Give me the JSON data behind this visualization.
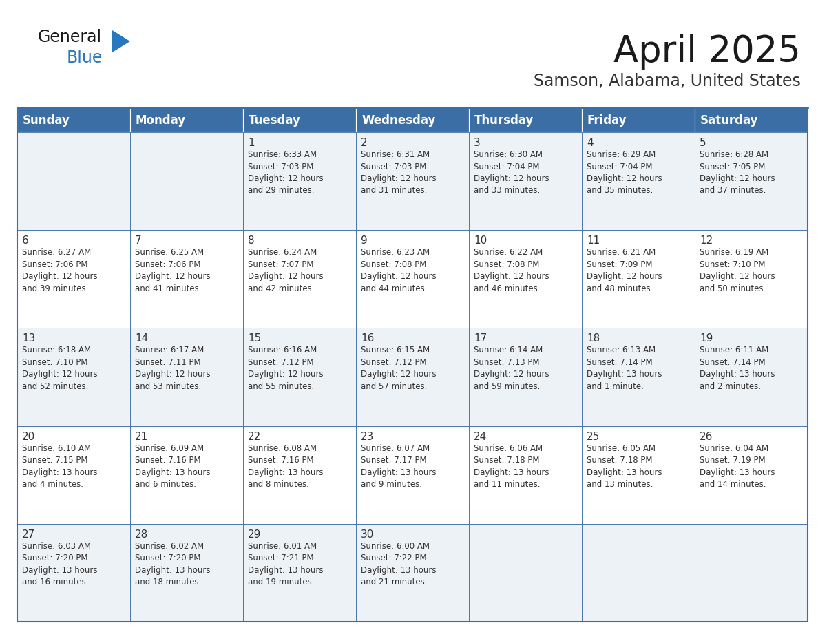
{
  "title": "April 2025",
  "subtitle": "Samson, Alabama, United States",
  "header_bg_color": "#3a6ea5",
  "header_text_color": "#ffffff",
  "cell_bg_row0": "#edf2f7",
  "cell_bg_row1": "#ffffff",
  "border_color": "#3a6ea5",
  "text_color": "#333333",
  "day_headers": [
    "Sunday",
    "Monday",
    "Tuesday",
    "Wednesday",
    "Thursday",
    "Friday",
    "Saturday"
  ],
  "weeks": [
    {
      "days": [
        {
          "date": "",
          "info": ""
        },
        {
          "date": "",
          "info": ""
        },
        {
          "date": "1",
          "info": "Sunrise: 6:33 AM\nSunset: 7:03 PM\nDaylight: 12 hours\nand 29 minutes."
        },
        {
          "date": "2",
          "info": "Sunrise: 6:31 AM\nSunset: 7:03 PM\nDaylight: 12 hours\nand 31 minutes."
        },
        {
          "date": "3",
          "info": "Sunrise: 6:30 AM\nSunset: 7:04 PM\nDaylight: 12 hours\nand 33 minutes."
        },
        {
          "date": "4",
          "info": "Sunrise: 6:29 AM\nSunset: 7:04 PM\nDaylight: 12 hours\nand 35 minutes."
        },
        {
          "date": "5",
          "info": "Sunrise: 6:28 AM\nSunset: 7:05 PM\nDaylight: 12 hours\nand 37 minutes."
        }
      ]
    },
    {
      "days": [
        {
          "date": "6",
          "info": "Sunrise: 6:27 AM\nSunset: 7:06 PM\nDaylight: 12 hours\nand 39 minutes."
        },
        {
          "date": "7",
          "info": "Sunrise: 6:25 AM\nSunset: 7:06 PM\nDaylight: 12 hours\nand 41 minutes."
        },
        {
          "date": "8",
          "info": "Sunrise: 6:24 AM\nSunset: 7:07 PM\nDaylight: 12 hours\nand 42 minutes."
        },
        {
          "date": "9",
          "info": "Sunrise: 6:23 AM\nSunset: 7:08 PM\nDaylight: 12 hours\nand 44 minutes."
        },
        {
          "date": "10",
          "info": "Sunrise: 6:22 AM\nSunset: 7:08 PM\nDaylight: 12 hours\nand 46 minutes."
        },
        {
          "date": "11",
          "info": "Sunrise: 6:21 AM\nSunset: 7:09 PM\nDaylight: 12 hours\nand 48 minutes."
        },
        {
          "date": "12",
          "info": "Sunrise: 6:19 AM\nSunset: 7:10 PM\nDaylight: 12 hours\nand 50 minutes."
        }
      ]
    },
    {
      "days": [
        {
          "date": "13",
          "info": "Sunrise: 6:18 AM\nSunset: 7:10 PM\nDaylight: 12 hours\nand 52 minutes."
        },
        {
          "date": "14",
          "info": "Sunrise: 6:17 AM\nSunset: 7:11 PM\nDaylight: 12 hours\nand 53 minutes."
        },
        {
          "date": "15",
          "info": "Sunrise: 6:16 AM\nSunset: 7:12 PM\nDaylight: 12 hours\nand 55 minutes."
        },
        {
          "date": "16",
          "info": "Sunrise: 6:15 AM\nSunset: 7:12 PM\nDaylight: 12 hours\nand 57 minutes."
        },
        {
          "date": "17",
          "info": "Sunrise: 6:14 AM\nSunset: 7:13 PM\nDaylight: 12 hours\nand 59 minutes."
        },
        {
          "date": "18",
          "info": "Sunrise: 6:13 AM\nSunset: 7:14 PM\nDaylight: 13 hours\nand 1 minute."
        },
        {
          "date": "19",
          "info": "Sunrise: 6:11 AM\nSunset: 7:14 PM\nDaylight: 13 hours\nand 2 minutes."
        }
      ]
    },
    {
      "days": [
        {
          "date": "20",
          "info": "Sunrise: 6:10 AM\nSunset: 7:15 PM\nDaylight: 13 hours\nand 4 minutes."
        },
        {
          "date": "21",
          "info": "Sunrise: 6:09 AM\nSunset: 7:16 PM\nDaylight: 13 hours\nand 6 minutes."
        },
        {
          "date": "22",
          "info": "Sunrise: 6:08 AM\nSunset: 7:16 PM\nDaylight: 13 hours\nand 8 minutes."
        },
        {
          "date": "23",
          "info": "Sunrise: 6:07 AM\nSunset: 7:17 PM\nDaylight: 13 hours\nand 9 minutes."
        },
        {
          "date": "24",
          "info": "Sunrise: 6:06 AM\nSunset: 7:18 PM\nDaylight: 13 hours\nand 11 minutes."
        },
        {
          "date": "25",
          "info": "Sunrise: 6:05 AM\nSunset: 7:18 PM\nDaylight: 13 hours\nand 13 minutes."
        },
        {
          "date": "26",
          "info": "Sunrise: 6:04 AM\nSunset: 7:19 PM\nDaylight: 13 hours\nand 14 minutes."
        }
      ]
    },
    {
      "days": [
        {
          "date": "27",
          "info": "Sunrise: 6:03 AM\nSunset: 7:20 PM\nDaylight: 13 hours\nand 16 minutes."
        },
        {
          "date": "28",
          "info": "Sunrise: 6:02 AM\nSunset: 7:20 PM\nDaylight: 13 hours\nand 18 minutes."
        },
        {
          "date": "29",
          "info": "Sunrise: 6:01 AM\nSunset: 7:21 PM\nDaylight: 13 hours\nand 19 minutes."
        },
        {
          "date": "30",
          "info": "Sunrise: 6:00 AM\nSunset: 7:22 PM\nDaylight: 13 hours\nand 21 minutes."
        },
        {
          "date": "",
          "info": ""
        },
        {
          "date": "",
          "info": ""
        },
        {
          "date": "",
          "info": ""
        }
      ]
    }
  ],
  "logo_general_color": "#1a1a1a",
  "logo_blue_color": "#2878c0",
  "logo_triangle_color": "#2878c0",
  "title_fontsize": 38,
  "subtitle_fontsize": 17,
  "header_fontsize": 12,
  "date_fontsize": 11,
  "info_fontsize": 8.5
}
